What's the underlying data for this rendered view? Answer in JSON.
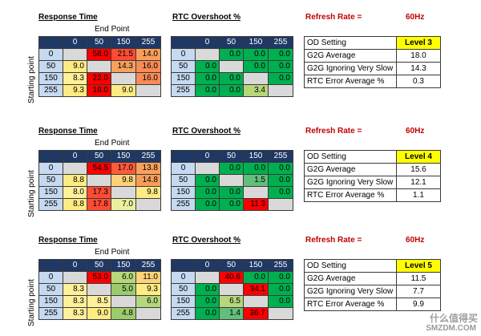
{
  "labels": {
    "response_time": "Response Time",
    "rtc_overshoot": "RTC Overshoot %",
    "refresh_rate": "Refresh Rate =",
    "refresh_value": "60Hz",
    "end_point": "End Point",
    "starting_point": "Starting point"
  },
  "column_headers": [
    "0",
    "50",
    "150",
    "255"
  ],
  "row_headers": [
    "0",
    "50",
    "150",
    "255"
  ],
  "colors": {
    "header_navy": "#1f3864",
    "row_header_blue": "#c5d9f1",
    "red": "#ff0000",
    "orange_red": "#ff5a3c",
    "orange": "#f99d5b",
    "light_orange": "#fbc27a",
    "yellow": "#ffeb84",
    "light_green": "#b6d77a",
    "green": "#00b050",
    "grey": "#d9d9d9",
    "level_yellow": "#ffff00"
  },
  "sections": [
    {
      "response": [
        [
          {
            "v": "",
            "c": "#d9d9d9"
          },
          {
            "v": "58.0",
            "c": "#ff0000"
          },
          {
            "v": "21.5",
            "c": "#ff4b33"
          },
          {
            "v": "14.0",
            "c": "#f99d5b"
          }
        ],
        [
          {
            "v": "9.0",
            "c": "#ffeb84"
          },
          {
            "v": "",
            "c": "#d9d9d9"
          },
          {
            "v": "14.3",
            "c": "#f9a05d"
          },
          {
            "v": "16.0",
            "c": "#f88b56"
          }
        ],
        [
          {
            "v": "8.3",
            "c": "#fff09a"
          },
          {
            "v": "22.0",
            "c": "#ff0000"
          },
          {
            "v": "",
            "c": "#d9d9d9"
          },
          {
            "v": "16.0",
            "c": "#f88b56"
          }
        ],
        [
          {
            "v": "9.3",
            "c": "#ffeb84"
          },
          {
            "v": "18.0",
            "c": "#ff0000"
          },
          {
            "v": "9.0",
            "c": "#ffeb84"
          },
          {
            "v": "",
            "c": "#d9d9d9"
          }
        ]
      ],
      "overshoot": [
        [
          {
            "v": "",
            "c": "#d9d9d9"
          },
          {
            "v": "0.0",
            "c": "#00b050"
          },
          {
            "v": "0.0",
            "c": "#00b050"
          },
          {
            "v": "0.0",
            "c": "#00b050"
          }
        ],
        [
          {
            "v": "0.0",
            "c": "#00b050"
          },
          {
            "v": "",
            "c": "#d9d9d9"
          },
          {
            "v": "0.0",
            "c": "#00b050"
          },
          {
            "v": "0.0",
            "c": "#00b050"
          }
        ],
        [
          {
            "v": "0.0",
            "c": "#00b050"
          },
          {
            "v": "0.0",
            "c": "#00b050"
          },
          {
            "v": "",
            "c": "#d9d9d9"
          },
          {
            "v": "0.0",
            "c": "#00b050"
          }
        ],
        [
          {
            "v": "0.0",
            "c": "#00b050"
          },
          {
            "v": "0.0",
            "c": "#00b050"
          },
          {
            "v": "3.4",
            "c": "#b6d77a"
          },
          {
            "v": "",
            "c": "#d9d9d9"
          }
        ]
      ],
      "summary": {
        "od_label": "OD Setting",
        "od_value": "Level 3",
        "g2g_label": "G2G Average",
        "g2g_value": "18.0",
        "g2g_slow_label": "G2G Ignoring Very Slow",
        "g2g_slow_value": "14.3",
        "rtc_label": "RTC Error Average %",
        "rtc_value": "0.3"
      }
    },
    {
      "response": [
        [
          {
            "v": "",
            "c": "#d9d9d9"
          },
          {
            "v": "54.5",
            "c": "#ff0000"
          },
          {
            "v": "17.0",
            "c": "#ff5a3c"
          },
          {
            "v": "13.8",
            "c": "#f9a05d"
          }
        ],
        [
          {
            "v": "8.8",
            "c": "#ffeb84"
          },
          {
            "v": "",
            "c": "#d9d9d9"
          },
          {
            "v": "9.8",
            "c": "#ffd27a"
          },
          {
            "v": "14.8",
            "c": "#f99d5b"
          }
        ],
        [
          {
            "v": "8.0",
            "c": "#fff09a"
          },
          {
            "v": "17.3",
            "c": "#ff4b33"
          },
          {
            "v": "",
            "c": "#d9d9d9"
          },
          {
            "v": "9.8",
            "c": "#ffeb84"
          }
        ],
        [
          {
            "v": "8.8",
            "c": "#ffeb84"
          },
          {
            "v": "17.8",
            "c": "#ff4b33"
          },
          {
            "v": "7.0",
            "c": "#eaf0a0"
          },
          {
            "v": "",
            "c": "#d9d9d9"
          }
        ]
      ],
      "overshoot": [
        [
          {
            "v": "",
            "c": "#d9d9d9"
          },
          {
            "v": "0.0",
            "c": "#00b050"
          },
          {
            "v": "0.0",
            "c": "#00b050"
          },
          {
            "v": "0.0",
            "c": "#00b050"
          }
        ],
        [
          {
            "v": "0.0",
            "c": "#00b050"
          },
          {
            "v": "",
            "c": "#d9d9d9"
          },
          {
            "v": "1.5",
            "c": "#63be7b"
          },
          {
            "v": "0.0",
            "c": "#00b050"
          }
        ],
        [
          {
            "v": "0.0",
            "c": "#00b050"
          },
          {
            "v": "0.0",
            "c": "#00b050"
          },
          {
            "v": "",
            "c": "#d9d9d9"
          },
          {
            "v": "0.0",
            "c": "#00b050"
          }
        ],
        [
          {
            "v": "0.0",
            "c": "#00b050"
          },
          {
            "v": "0.0",
            "c": "#00b050"
          },
          {
            "v": "11.3",
            "c": "#ff0000"
          },
          {
            "v": "",
            "c": "#d9d9d9"
          }
        ]
      ],
      "summary": {
        "od_label": "OD Setting",
        "od_value": "Level 4",
        "g2g_label": "G2G Average",
        "g2g_value": "15.6",
        "g2g_slow_label": "G2G Ignoring Very Slow",
        "g2g_slow_value": "12.1",
        "rtc_label": "RTC Error Average %",
        "rtc_value": "1.1"
      }
    },
    {
      "response": [
        [
          {
            "v": "",
            "c": "#d9d9d9"
          },
          {
            "v": "53.0",
            "c": "#ff0000"
          },
          {
            "v": "6.0",
            "c": "#b6d77a"
          },
          {
            "v": "11.0",
            "c": "#ffd27a"
          }
        ],
        [
          {
            "v": "8.3",
            "c": "#fff09a"
          },
          {
            "v": "",
            "c": "#d9d9d9"
          },
          {
            "v": "5.0",
            "c": "#9bcc6c"
          },
          {
            "v": "9.3",
            "c": "#ffeb84"
          }
        ],
        [
          {
            "v": "8.3",
            "c": "#fff09a"
          },
          {
            "v": "8.5",
            "c": "#fff09a"
          },
          {
            "v": "",
            "c": "#d9d9d9"
          },
          {
            "v": "6.0",
            "c": "#b6d77a"
          }
        ],
        [
          {
            "v": "8.3",
            "c": "#fff09a"
          },
          {
            "v": "9.0",
            "c": "#ffeb84"
          },
          {
            "v": "4.8",
            "c": "#9bcc6c"
          },
          {
            "v": "",
            "c": "#d9d9d9"
          }
        ]
      ],
      "overshoot": [
        [
          {
            "v": "",
            "c": "#d9d9d9"
          },
          {
            "v": "40.6",
            "c": "#ff0000"
          },
          {
            "v": "0.0",
            "c": "#00b050"
          },
          {
            "v": "0.0",
            "c": "#00b050"
          }
        ],
        [
          {
            "v": "0.0",
            "c": "#00b050"
          },
          {
            "v": "",
            "c": "#d9d9d9"
          },
          {
            "v": "34.1",
            "c": "#ff0000"
          },
          {
            "v": "0.0",
            "c": "#00b050"
          }
        ],
        [
          {
            "v": "0.0",
            "c": "#00b050"
          },
          {
            "v": "6.5",
            "c": "#b6d77a"
          },
          {
            "v": "",
            "c": "#d9d9d9"
          },
          {
            "v": "0.0",
            "c": "#00b050"
          }
        ],
        [
          {
            "v": "0.0",
            "c": "#00b050"
          },
          {
            "v": "1.4",
            "c": "#63be7b"
          },
          {
            "v": "36.7",
            "c": "#ff0000"
          },
          {
            "v": "",
            "c": "#d9d9d9"
          }
        ]
      ],
      "summary": {
        "od_label": "OD Setting",
        "od_value": "Level 5",
        "g2g_label": "G2G Average",
        "g2g_value": "11.5",
        "g2g_slow_label": "G2G Ignoring Very Slow",
        "g2g_slow_value": "7.7",
        "rtc_label": "RTC Error Average %",
        "rtc_value": "9.9"
      }
    }
  ],
  "watermark": {
    "line1": "什么值得买",
    "line2": "SMZDM.COM"
  }
}
